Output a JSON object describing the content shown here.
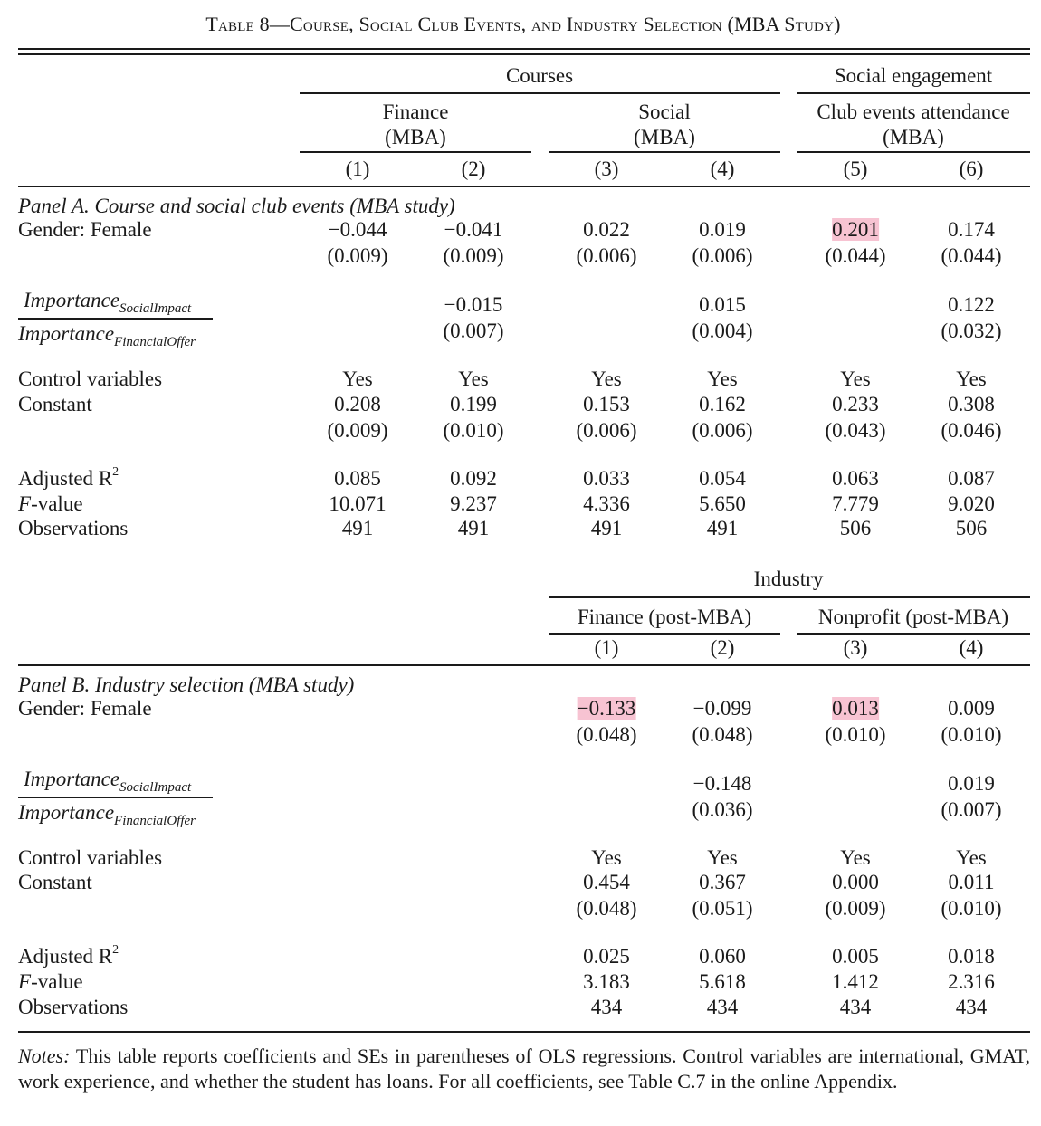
{
  "title": {
    "prefix": "Table 8—",
    "text": "Course, Social Club Events, and Industry Selection (MBA Study)"
  },
  "panelA": {
    "group_headers": {
      "courses": "Courses",
      "social": "Social engagement"
    },
    "sub_headers": {
      "finance": [
        "Finance",
        "(MBA)"
      ],
      "social": [
        "Social",
        "(MBA)"
      ],
      "club": [
        "Club events attendance",
        "(MBA)"
      ]
    },
    "col_numbers": [
      "(1)",
      "(2)",
      "(3)",
      "(4)",
      "(5)",
      "(6)"
    ],
    "panel_label": "Panel A. Course and social club events",
    "panel_label_paren": "(MBA study)",
    "rows": {
      "gender_label": "Gender: Female",
      "gender": [
        "−0.044",
        "−0.041",
        "0.022",
        "0.019",
        "0.201",
        "0.174"
      ],
      "gender_se": [
        "(0.009)",
        "(0.009)",
        "(0.006)",
        "(0.006)",
        "(0.044)",
        "(0.044)"
      ],
      "ratio_num": "Importance",
      "ratio_num_sub": "SocialImpact",
      "ratio_den": "Importance",
      "ratio_den_sub": "FinancialOffer",
      "ratio": [
        "",
        "−0.015",
        "",
        "0.015",
        "",
        "0.122"
      ],
      "ratio_se": [
        "",
        "(0.007)",
        "",
        "(0.004)",
        "",
        "(0.032)"
      ],
      "controls_label": "Control variables",
      "controls": [
        "Yes",
        "Yes",
        "Yes",
        "Yes",
        "Yes",
        "Yes"
      ],
      "constant_label": "Constant",
      "constant": [
        "0.208",
        "0.199",
        "0.153",
        "0.162",
        "0.233",
        "0.308"
      ],
      "constant_se": [
        "(0.009)",
        "(0.010)",
        "(0.006)",
        "(0.006)",
        "(0.043)",
        "(0.046)"
      ],
      "r2_label": "Adjusted R",
      "r2_sup": "2",
      "r2": [
        "0.085",
        "0.092",
        "0.033",
        "0.054",
        "0.063",
        "0.087"
      ],
      "f_label_it": "F",
      "f_label": "-value",
      "f": [
        "10.071",
        "9.237",
        "4.336",
        "5.650",
        "7.779",
        "9.020"
      ],
      "obs_label": "Observations",
      "obs": [
        "491",
        "491",
        "491",
        "491",
        "506",
        "506"
      ]
    }
  },
  "panelB": {
    "group_header": "Industry",
    "sub_headers": {
      "finance": "Finance (post-MBA)",
      "nonprofit": "Nonprofit (post-MBA)"
    },
    "col_numbers": [
      "(1)",
      "(2)",
      "(3)",
      "(4)"
    ],
    "panel_label": "Panel B. Industry selection",
    "panel_label_paren": "(MBA study)",
    "rows": {
      "gender_label": "Gender: Female",
      "gender": [
        "−0.133",
        "−0.099",
        "0.013",
        "0.009"
      ],
      "gender_se": [
        "(0.048)",
        "(0.048)",
        "(0.010)",
        "(0.010)"
      ],
      "ratio_num": "Importance",
      "ratio_num_sub": "SocialImpact",
      "ratio_den": "Importance",
      "ratio_den_sub": "FinancialOffer",
      "ratio": [
        "",
        "−0.148",
        "",
        "0.019"
      ],
      "ratio_se": [
        "",
        "(0.036)",
        "",
        "(0.007)"
      ],
      "controls_label": "Control variables",
      "controls": [
        "Yes",
        "Yes",
        "Yes",
        "Yes"
      ],
      "constant_label": "Constant",
      "constant": [
        "0.454",
        "0.367",
        "0.000",
        "0.011"
      ],
      "constant_se": [
        "(0.048)",
        "(0.051)",
        "(0.009)",
        "(0.010)"
      ],
      "r2_label": "Adjusted R",
      "r2_sup": "2",
      "r2": [
        "0.025",
        "0.060",
        "0.005",
        "0.018"
      ],
      "f_label_it": "F",
      "f_label": "-value",
      "f": [
        "3.183",
        "5.618",
        "1.412",
        "2.316"
      ],
      "obs_label": "Observations",
      "obs": [
        "434",
        "434",
        "434",
        "434"
      ]
    }
  },
  "notes": {
    "label": "Notes:",
    "text": " This table reports coefficients and SEs in parentheses of OLS regressions. Control variables are international, GMAT, work experience, and whether the student has loans. For all coefficients, see Table C.7 in the online Appendix."
  },
  "colors": {
    "highlight": "#f7c3d2",
    "text": "#1a1a1a"
  }
}
